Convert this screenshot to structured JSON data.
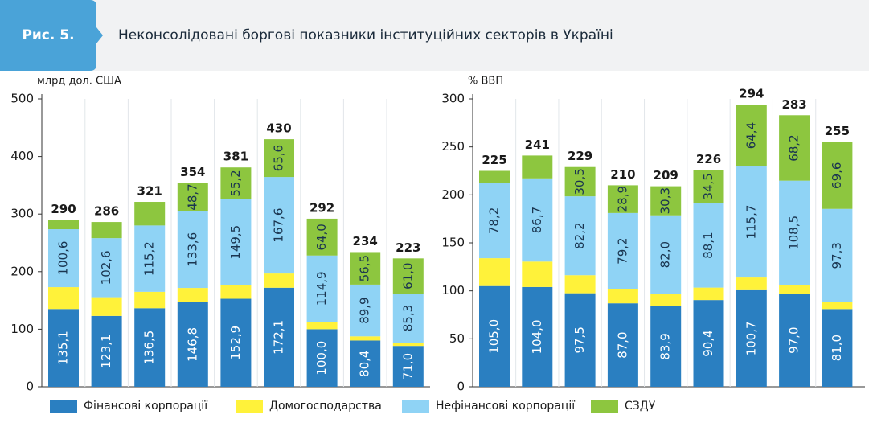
{
  "header": {
    "figure": "Рис. 5.",
    "title": "Неконсолідовані боргові показники інституційних секторів в Україні"
  },
  "chart_data": [
    {
      "type": "bar",
      "stacked": true,
      "y_label": "млрд дол. США",
      "categories": [
        null,
        null,
        null,
        null,
        null,
        null,
        null,
        null,
        null
      ],
      "ylim": [
        0,
        500
      ],
      "yticks": [
        0,
        100,
        200,
        300,
        400,
        500
      ],
      "series": [
        {
          "name": "Фінансові корпорації",
          "color": "#2a7fc1",
          "values": [
            135.1,
            123.1,
            136.5,
            146.8,
            152.9,
            172.1,
            100.0,
            80.4,
            71.0
          ],
          "value_labels": [
            "135,1",
            "123,1",
            "136,5",
            "146,8",
            "152,9",
            "172,1",
            "100,0",
            "80,4",
            "71,0"
          ]
        },
        {
          "name": "Домогосподарства",
          "color": "#fff23a",
          "values": [
            38,
            32.5,
            28.5,
            24.9,
            23.4,
            24.7,
            13.1,
            7.2,
            5.7
          ]
        },
        {
          "name": "Нефінансові корпорації",
          "color": "#8fd3f5",
          "values": [
            100.6,
            102.6,
            115.2,
            133.6,
            149.5,
            167.6,
            114.9,
            89.9,
            85.3
          ],
          "value_labels": [
            "100,6",
            "102,6",
            "115,2",
            "133,6",
            "149,5",
            "167,6",
            "114,9",
            "89,9",
            "85,3"
          ]
        },
        {
          "name": "СЗДУ",
          "color": "#8dc63f",
          "values": [
            16,
            28,
            41,
            48.7,
            55.2,
            65.6,
            64.0,
            56.5,
            61.0
          ],
          "value_labels": [
            null,
            null,
            null,
            "48,7",
            "55,2",
            "65,6",
            "64,0",
            "56,5",
            "61,0"
          ]
        }
      ],
      "totals": [
        290,
        286,
        321,
        354,
        381,
        430,
        292,
        234,
        223
      ]
    },
    {
      "type": "bar",
      "stacked": true,
      "y_label": "% ВВП",
      "categories": [
        null,
        null,
        null,
        null,
        null,
        null,
        null,
        null,
        null
      ],
      "ylim": [
        0,
        300
      ],
      "yticks": [
        0,
        50,
        100,
        150,
        200,
        250,
        300
      ],
      "series": [
        {
          "color": "#2a7fc1",
          "values": [
            105.0,
            104.0,
            97.5,
            87.0,
            83.9,
            90.4,
            100.7,
            97.0,
            81.0
          ],
          "value_labels": [
            "105,0",
            "104,0",
            "97,5",
            "87,0",
            "83,9",
            "90,4",
            "100,7",
            "97,0",
            "81,0"
          ]
        },
        {
          "color": "#fff23a",
          "values": [
            29,
            26.5,
            18.8,
            14.9,
            12.8,
            13.0,
            13.2,
            9.3,
            7.1
          ]
        },
        {
          "color": "#8fd3f5",
          "values": [
            78.2,
            86.7,
            82.2,
            79.2,
            82.0,
            88.1,
            115.7,
            108.5,
            97.3
          ],
          "value_labels": [
            "78,2",
            "86,7",
            "82,2",
            "79,2",
            "82,0",
            "88,1",
            "115,7",
            "108,5",
            "97,3"
          ]
        },
        {
          "color": "#8dc63f",
          "values": [
            12.8,
            23.8,
            30.5,
            28.9,
            30.3,
            34.5,
            64.4,
            68.2,
            69.6
          ],
          "value_labels": [
            null,
            null,
            "30,5",
            "28,9",
            "30,3",
            "34,5",
            "64,4",
            "68,2",
            "69,6"
          ]
        }
      ],
      "totals": [
        225,
        241,
        229,
        210,
        209,
        226,
        294,
        283,
        255
      ]
    }
  ]
}
